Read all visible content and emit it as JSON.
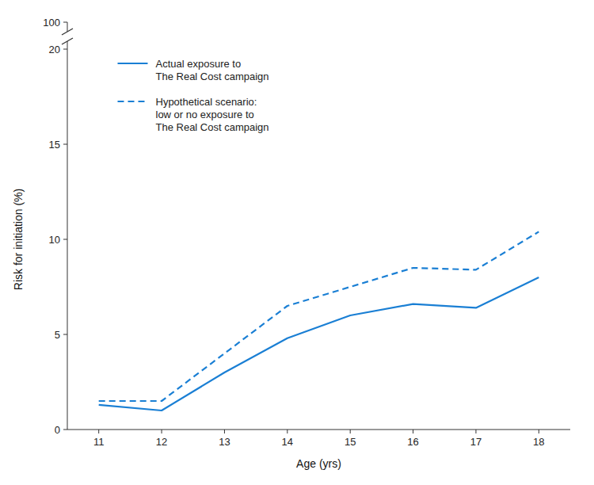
{
  "chart_data": {
    "type": "line",
    "x": [
      11,
      12,
      13,
      14,
      15,
      16,
      17,
      18
    ],
    "series": [
      {
        "name": "Actual exposure to\nThe Real Cost campaign",
        "color": "#1a7fd4",
        "line_style": "solid",
        "values": [
          1.3,
          1.0,
          3.0,
          4.8,
          6.0,
          6.6,
          6.4,
          8.0
        ]
      },
      {
        "name": "Hypothetical scenario:\nlow or no exposure to\nThe Real Cost campaign",
        "color": "#1a7fd4",
        "line_style": "dashed",
        "values": [
          1.5,
          1.5,
          4.0,
          6.5,
          7.5,
          8.5,
          8.4,
          10.4
        ]
      }
    ],
    "x_label": "Age (yrs)",
    "y_label": "Risk for initiation (%)",
    "xlim": [
      10.5,
      18.5
    ],
    "xticks": [
      11,
      12,
      13,
      14,
      15,
      16,
      17,
      18
    ],
    "ylim": [
      0,
      20
    ],
    "yticks": [
      0,
      5,
      10,
      15,
      20
    ],
    "annotations": [
      "100"
    ],
    "legend": "upper left",
    "grid": false
  }
}
